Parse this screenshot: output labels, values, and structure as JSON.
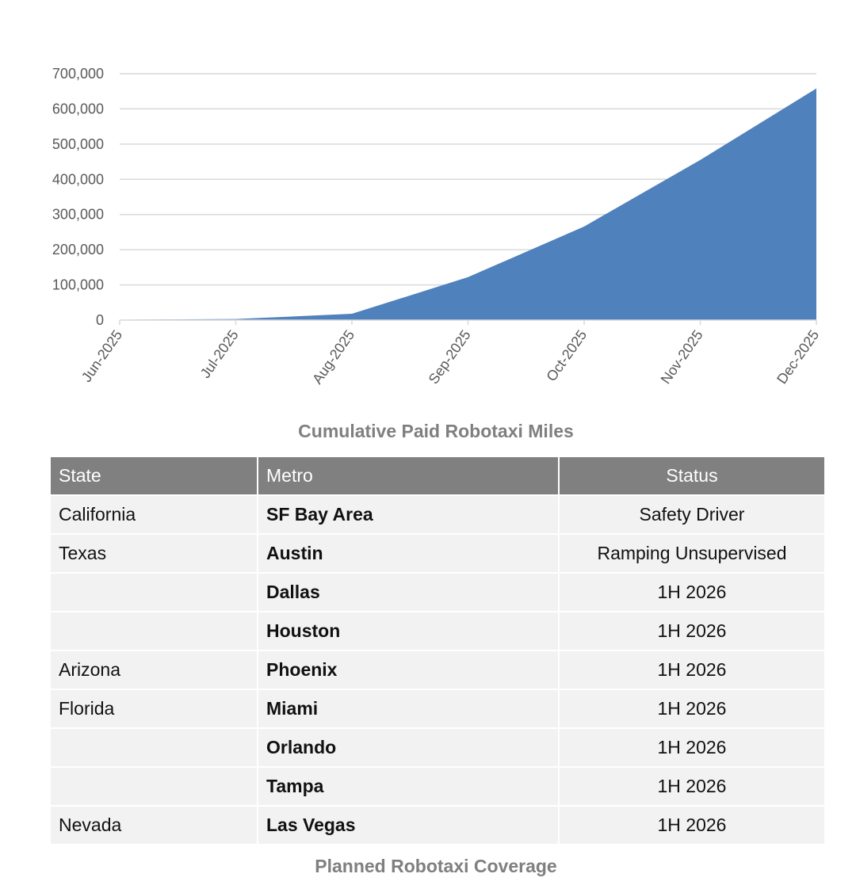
{
  "chart_data": {
    "type": "area",
    "title": "Cumulative Paid Robotaxi Miles",
    "categories": [
      "Jun-2025",
      "Jul-2025",
      "Aug-2025",
      "Sep-2025",
      "Oct-2025",
      "Nov-2025",
      "Dec-2025"
    ],
    "values": [
      1000,
      3000,
      18000,
      122000,
      266000,
      455000,
      658000
    ],
    "ylim": [
      0,
      700000
    ],
    "yticks": [
      "0",
      "100,000",
      "200,000",
      "300,000",
      "400,000",
      "500,000",
      "600,000",
      "700,000"
    ],
    "grid": true,
    "color": "#4f81bd"
  },
  "table": {
    "title": "Planned Robotaxi Coverage",
    "headers": [
      "State",
      "Metro",
      "Status"
    ],
    "rows": [
      [
        "California",
        "SF Bay Area",
        "Safety Driver"
      ],
      [
        "Texas",
        "Austin",
        "Ramping Unsupervised"
      ],
      [
        "",
        "Dallas",
        "1H 2026"
      ],
      [
        "",
        "Houston",
        "1H 2026"
      ],
      [
        "Arizona",
        "Phoenix",
        "1H 2026"
      ],
      [
        "Florida",
        "Miami",
        "1H 2026"
      ],
      [
        "",
        "Orlando",
        "1H 2026"
      ],
      [
        "",
        "Tampa",
        "1H 2026"
      ],
      [
        "Nevada",
        "Las Vegas",
        "1H 2026"
      ]
    ]
  }
}
